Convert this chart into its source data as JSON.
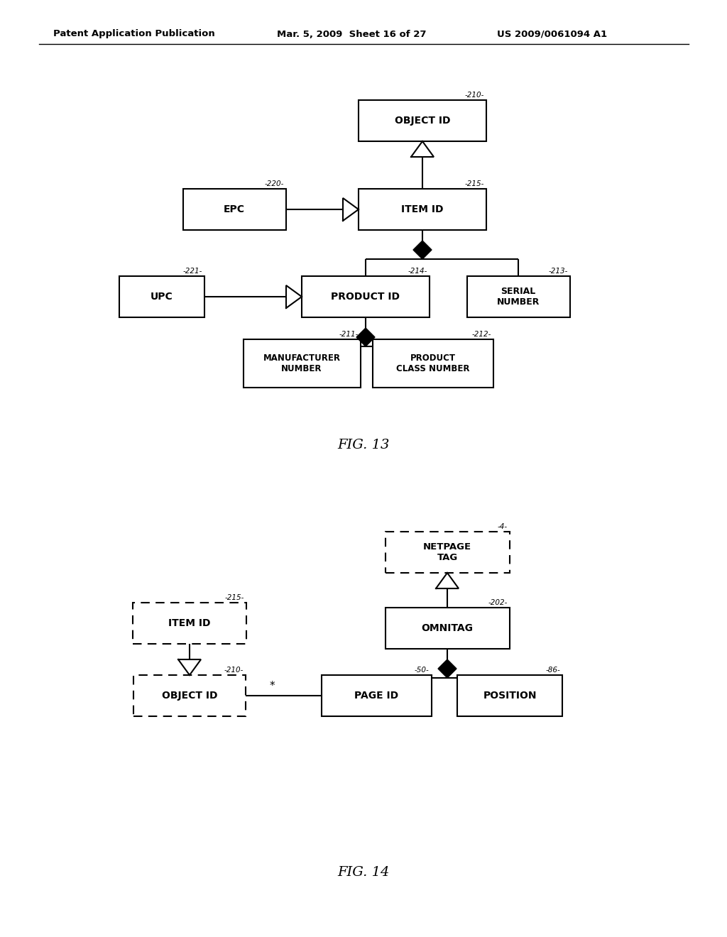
{
  "bg_color": "#ffffff",
  "header_left": "Patent Application Publication",
  "header_mid": "Mar. 5, 2009  Sheet 16 of 27",
  "header_right": "US 2009/0061094 A1",
  "fig13_label": "FIG. 13",
  "fig14_label": "FIG. 14"
}
